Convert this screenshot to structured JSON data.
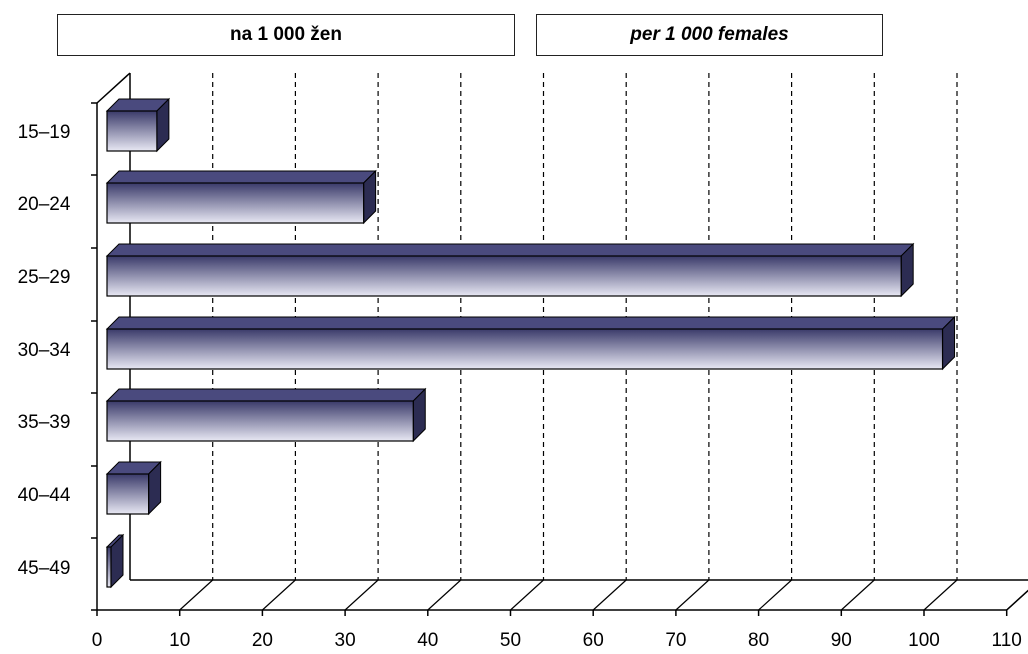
{
  "legend": {
    "local_label": "na 1 000 žen",
    "english_label": "per 1 000 females"
  },
  "colors": {
    "bar_dark": "#3a3a6a",
    "bar_light": "#e8e8f4",
    "bar_top": "#4a4a7e",
    "bar_side": "#2c2c52",
    "gridline": "#000000"
  },
  "chart_data": {
    "type": "bar",
    "orientation": "horizontal",
    "three_d": true,
    "categories": [
      "15–19",
      "20–24",
      "25–29",
      "30–34",
      "35–39",
      "40–44",
      "45–49"
    ],
    "values": [
      7,
      32,
      97,
      102,
      38,
      6,
      0.3
    ],
    "xlim": [
      0,
      110
    ],
    "xticks": [
      0,
      10,
      20,
      30,
      40,
      50,
      60,
      70,
      80,
      90,
      100,
      110
    ],
    "grid": "vertical dashed",
    "title": "",
    "xlabel": "",
    "ylabel": ""
  }
}
